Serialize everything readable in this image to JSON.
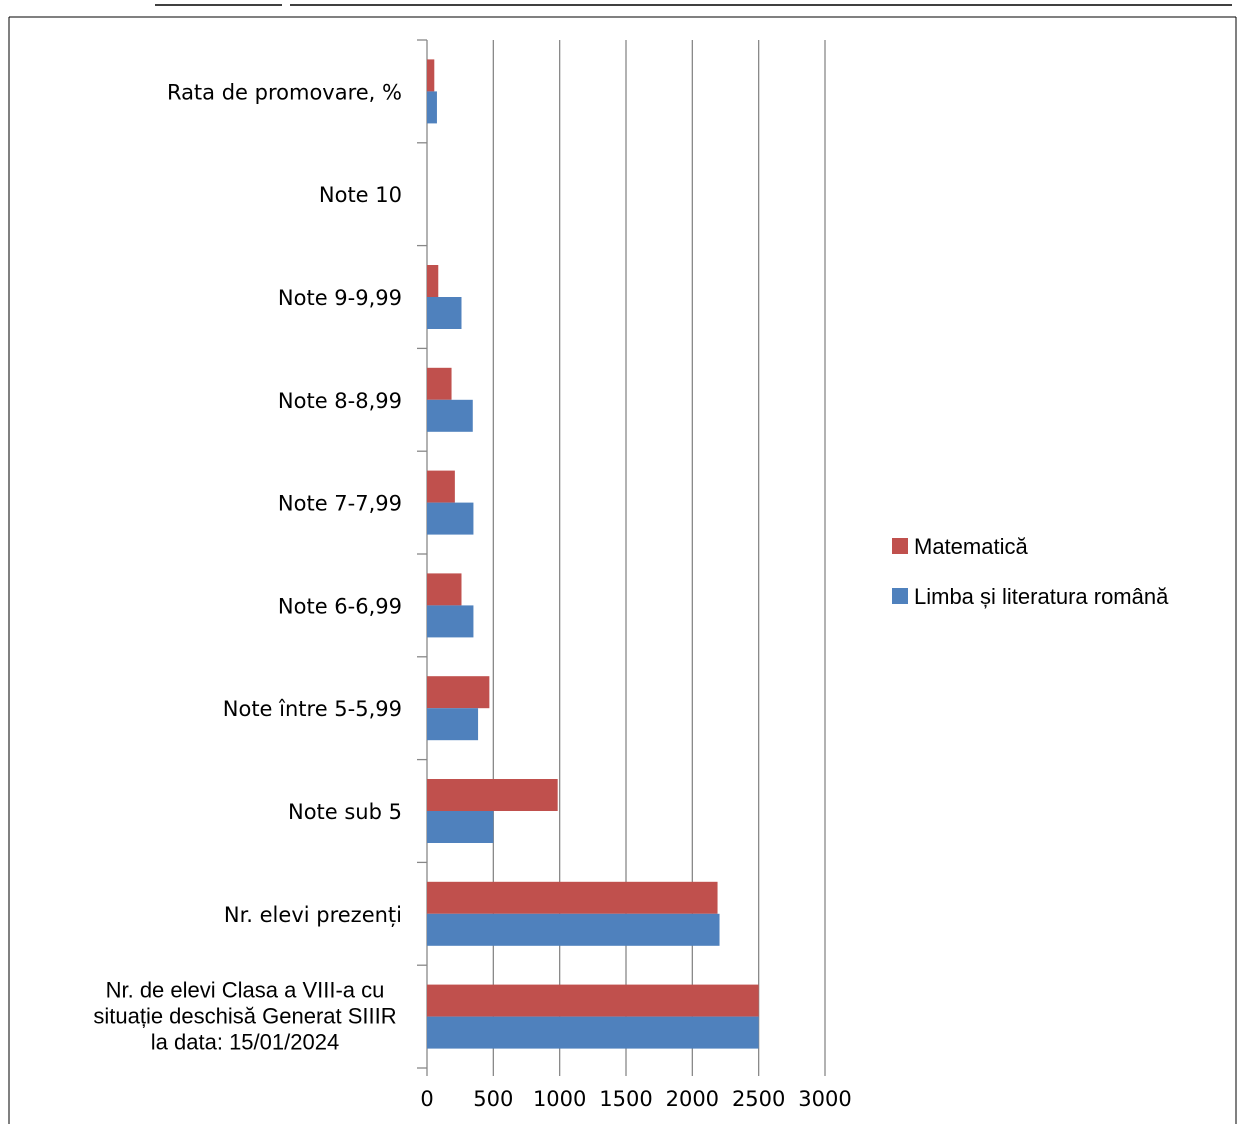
{
  "chart_data": {
    "type": "bar",
    "orientation": "horizontal",
    "categories": [
      "Nr. de elevi Clasa a VIII-a cu situație deschisă Generat  SIIIR la data: 15/01/2024",
      "Nr. elevi prezenți",
      "Note sub 5",
      "Note între 5-5,99",
      "Note 6-6,99",
      "Note 7-7,99",
      "Note 8-8,99",
      "Note 9-9,99",
      "Note 10",
      "Rata de promovare, %"
    ],
    "category_lines": [
      [
        "Nr. de elevi Clasa a VIII-a cu",
        "situație deschisă Generat  SIIIR",
        "la data: 15/01/2024"
      ],
      [
        "Nr. elevi prezenți"
      ],
      [
        "Note sub 5"
      ],
      [
        "Note între 5-5,99"
      ],
      [
        "Note 6-6,99"
      ],
      [
        "Note 7-7,99"
      ],
      [
        "Note 8-8,99"
      ],
      [
        "Note 9-9,99"
      ],
      [
        "Note 10"
      ],
      [
        "Rata de promovare, %"
      ]
    ],
    "series": [
      {
        "name": "Limba și literatura română",
        "color": "#4f81bd",
        "values": [
          2500,
          2205,
          500,
          385,
          350,
          350,
          345,
          260,
          0,
          75
        ]
      },
      {
        "name": "Matematică",
        "color": "#c0504d",
        "values": [
          2500,
          2190,
          985,
          470,
          260,
          210,
          185,
          85,
          0,
          55
        ]
      }
    ],
    "x_ticks": [
      "0",
      "500",
      "1000",
      "1500",
      "2000",
      "2500",
      "3000"
    ],
    "xlim": [
      0,
      3000
    ],
    "grid": true,
    "legend_position": "right",
    "legend_order": [
      "Matematică",
      "Limba și literatura română"
    ]
  }
}
